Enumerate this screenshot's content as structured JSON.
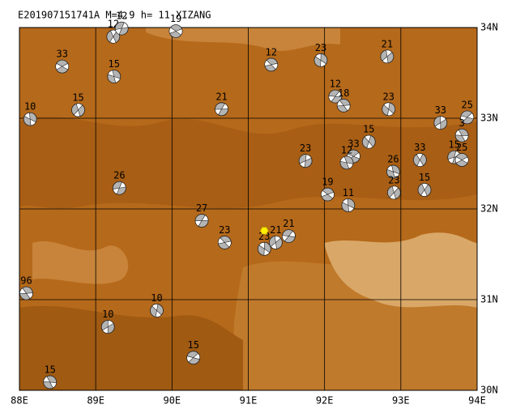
{
  "chart_data": {
    "type": "scatter",
    "title": "E201907151741A M=4.9 h= 11 XIZANG",
    "xlim": [
      88,
      94
    ],
    "ylim": [
      30,
      34
    ],
    "xticks": [
      {
        "value": 88,
        "label": "88E"
      },
      {
        "value": 89,
        "label": "89E"
      },
      {
        "value": 90,
        "label": "90E"
      },
      {
        "value": 91,
        "label": "91E"
      },
      {
        "value": 92,
        "label": "92E"
      },
      {
        "value": 93,
        "label": "93E"
      },
      {
        "value": 94,
        "label": "94E"
      }
    ],
    "yticks": [
      {
        "value": 30,
        "label": "30N"
      },
      {
        "value": 31,
        "label": "31N"
      },
      {
        "value": 32,
        "label": "32N"
      },
      {
        "value": 33,
        "label": "33N"
      },
      {
        "value": 34,
        "label": "34N"
      }
    ],
    "grid": true,
    "series": [
      {
        "color": "#b4b4b4",
        "x": [
          88.56,
          89.24,
          89.23,
          89.34,
          90.05,
          88.14,
          88.77,
          90.65,
          91.3,
          91.95,
          92.82,
          92.14,
          92.25,
          92.84,
          93.52,
          93.87,
          93.8,
          92.58,
          91.75,
          92.38,
          92.29,
          93.25,
          93.7,
          93.8,
          92.9,
          93.31,
          89.31,
          92.04,
          92.31,
          92.91,
          90.39,
          90.69,
          91.21,
          91.36,
          91.53,
          88.09,
          89.8,
          89.16,
          90.28,
          88.4
        ],
        "y": [
          33.57,
          33.46,
          33.9,
          33.99,
          33.96,
          32.99,
          33.09,
          33.1,
          33.59,
          33.64,
          33.68,
          33.24,
          33.14,
          33.1,
          32.95,
          33.01,
          32.81,
          32.74,
          32.53,
          32.58,
          32.51,
          32.54,
          32.57,
          32.54,
          32.41,
          32.21,
          32.23,
          32.16,
          32.04,
          32.18,
          31.87,
          31.63,
          31.56,
          31.63,
          31.7,
          31.07,
          30.88,
          30.7,
          30.36,
          30.09
        ],
        "labels": [
          33,
          15,
          12,
          12,
          19,
          10,
          15,
          21,
          12,
          23,
          21,
          12,
          18,
          23,
          33,
          25,
          3,
          15,
          23,
          33,
          12,
          33,
          15,
          25,
          26,
          15,
          26,
          19,
          11,
          23,
          27,
          23,
          23,
          21,
          21,
          96,
          10,
          10,
          15,
          15
        ]
      }
    ],
    "highlight": {
      "x": 91.21,
      "y": 31.76,
      "color": "#ffee00"
    }
  }
}
